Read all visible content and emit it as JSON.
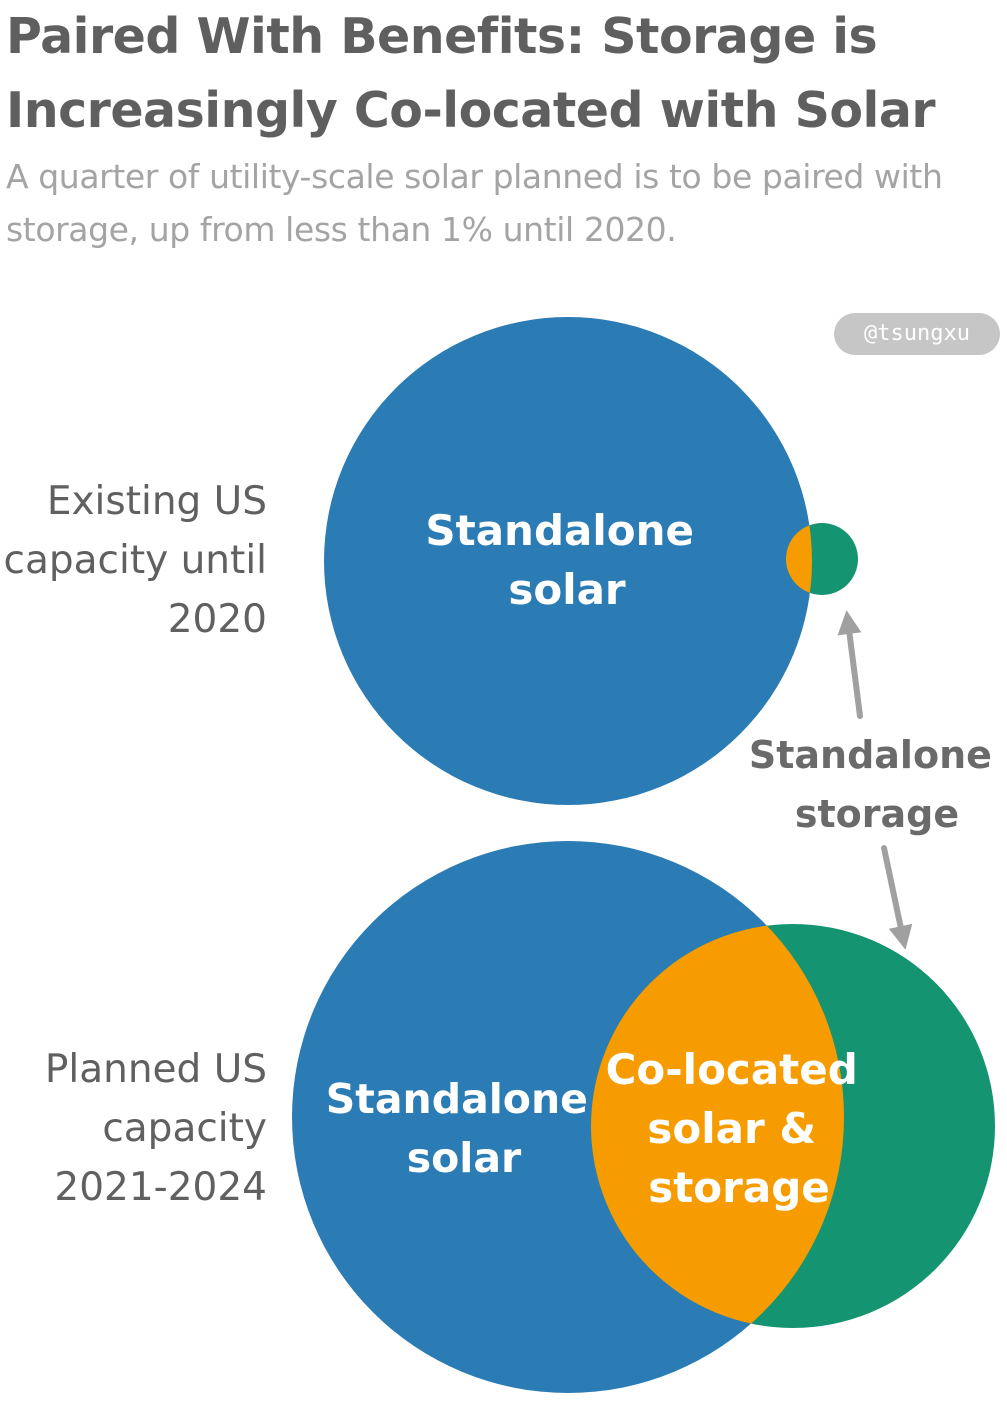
{
  "title": "Paired With Benefits: Storage is Increasingly Co-located with Solar",
  "subtitle": "A quarter of utility-scale solar planned is to be paired with storage, up from less than 1% until 2020.",
  "credit": "@tsungxu",
  "rows": {
    "existing": {
      "label": "Existing US capacity until 2020",
      "solar_label_line1": "Standalone",
      "solar_label_line2": "solar"
    },
    "planned": {
      "label": "Planned US capacity 2021-2024",
      "solar_label_line1": "Standalone",
      "solar_label_line2": "solar",
      "overlap_label_line1": "Co-located",
      "overlap_label_line2": "solar &",
      "overlap_label_line3": "storage"
    }
  },
  "annotation": {
    "line1": "Standalone",
    "line2": "storage"
  },
  "colors": {
    "standalone_solar": "#2b7bb4",
    "colocated": "#f69c00",
    "standalone_storage": "#159472",
    "arrow": "#a0a0a0",
    "title": "#5f5f5f",
    "subtitle": "#a4a4a4"
  }
}
